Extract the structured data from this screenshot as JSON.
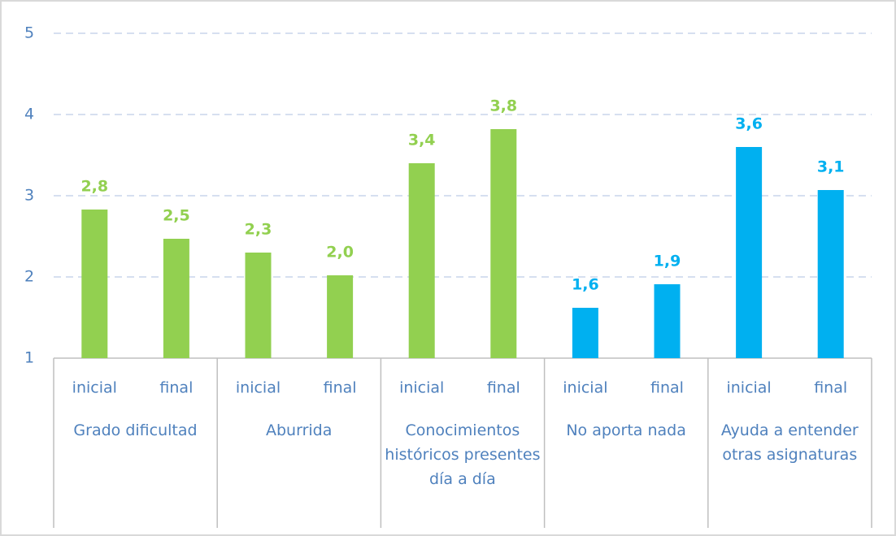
{
  "chart_data": {
    "type": "bar",
    "groups": [
      {
        "label": "Grado dificultad",
        "categories": [
          "inicial",
          "final"
        ],
        "values": [
          2.83,
          2.47
        ],
        "value_labels": [
          "2,8",
          "2,5"
        ],
        "color": "#92d050"
      },
      {
        "label": "Aburrida",
        "categories": [
          "inicial",
          "final"
        ],
        "values": [
          2.3,
          2.02
        ],
        "value_labels": [
          "2,3",
          "2,0"
        ],
        "color": "#92d050"
      },
      {
        "label": "Conocimientos históricos presentes día a día",
        "categories": [
          "inicial",
          "final"
        ],
        "values": [
          3.4,
          3.82
        ],
        "value_labels": [
          "3,4",
          "3,8"
        ],
        "color": "#92d050"
      },
      {
        "label": "No aporta nada",
        "categories": [
          "inicial",
          "final"
        ],
        "values": [
          1.62,
          1.91
        ],
        "value_labels": [
          "1,6",
          "1,9"
        ],
        "color": "#00b0f0"
      },
      {
        "label": "Ayuda a entender otras asignaturas",
        "categories": [
          "inicial",
          "final"
        ],
        "values": [
          3.6,
          3.07
        ],
        "value_labels": [
          "3,6",
          "3,1"
        ],
        "color": "#00b0f0"
      }
    ],
    "ylim": [
      1,
      5
    ],
    "yticks": [
      1,
      2,
      3,
      4,
      5
    ],
    "grid": true
  }
}
